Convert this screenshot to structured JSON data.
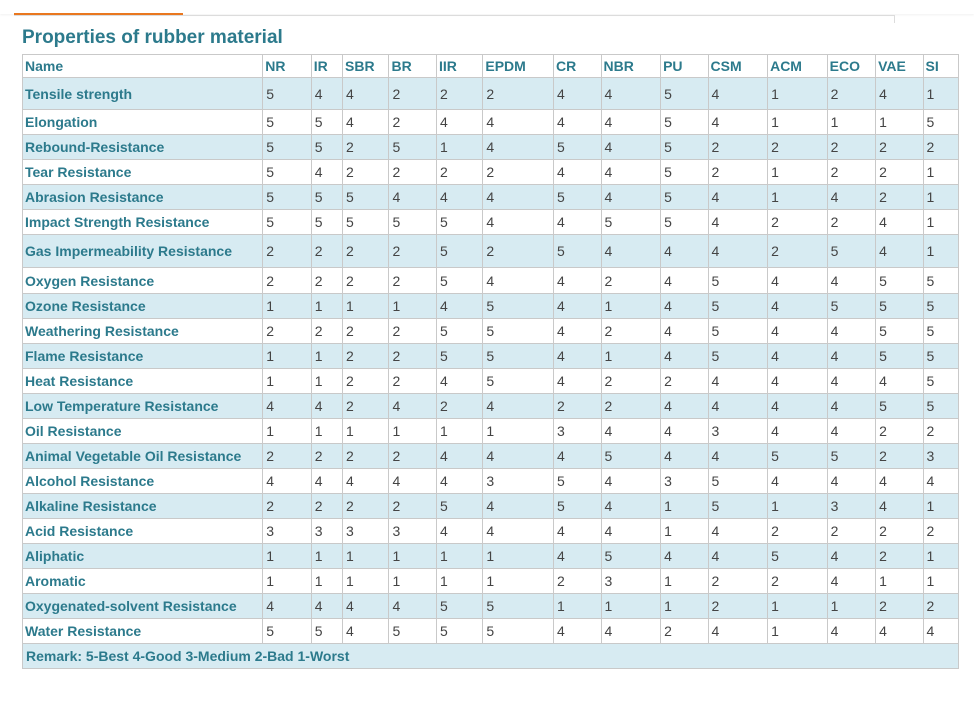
{
  "title": "Properties of rubber material",
  "header": [
    "Name",
    "NR",
    "IR",
    "SBR",
    "BR",
    "IIR",
    "EPDM",
    "CR",
    "NBR",
    "PU",
    "CSM",
    "ACM",
    "ECO",
    "VAE",
    "SI"
  ],
  "rows": [
    {
      "name": "Tensile strength",
      "values": [
        "5",
        "4",
        "4",
        "2",
        "2",
        "2",
        "4",
        "4",
        "5",
        "4",
        "1",
        "2",
        "4",
        "1"
      ]
    },
    {
      "name": "Elongation",
      "values": [
        "5",
        "5",
        "4",
        "2",
        "4",
        "4",
        "4",
        "4",
        "5",
        "4",
        "1",
        "1",
        "1",
        "5"
      ]
    },
    {
      "name": "Rebound-Resistance",
      "values": [
        "5",
        "5",
        "2",
        "5",
        "1",
        "4",
        "5",
        "4",
        "5",
        "2",
        "2",
        "2",
        "2",
        "2"
      ]
    },
    {
      "name": "Tear Resistance",
      "values": [
        "5",
        "4",
        "2",
        "2",
        "2",
        "2",
        "4",
        "4",
        "5",
        "2",
        "1",
        "2",
        "2",
        "1"
      ]
    },
    {
      "name": "Abrasion Resistance",
      "values": [
        "5",
        "5",
        "5",
        "4",
        "4",
        "4",
        "5",
        "4",
        "5",
        "4",
        "1",
        "4",
        "2",
        "1"
      ]
    },
    {
      "name": "Impact Strength Resistance",
      "values": [
        "5",
        "5",
        "5",
        "5",
        "5",
        "4",
        "4",
        "5",
        "5",
        "4",
        "2",
        "2",
        "4",
        "1"
      ]
    },
    {
      "name": "Gas Impermeability Resistance",
      "values": [
        "2",
        "2",
        "2",
        "2",
        "5",
        "2",
        "5",
        "4",
        "4",
        "4",
        "2",
        "5",
        "4",
        "1"
      ]
    },
    {
      "name": "Oxygen Resistance",
      "values": [
        "2",
        "2",
        "2",
        "2",
        "5",
        "4",
        "4",
        "2",
        "4",
        "5",
        "4",
        "4",
        "5",
        "5"
      ]
    },
    {
      "name": "Ozone Resistance",
      "values": [
        "1",
        "1",
        "1",
        "1",
        "4",
        "5",
        "4",
        "1",
        "4",
        "5",
        "4",
        "5",
        "5",
        "5"
      ]
    },
    {
      "name": "Weathering Resistance",
      "values": [
        "2",
        "2",
        "2",
        "2",
        "5",
        "5",
        "4",
        "2",
        "4",
        "5",
        "4",
        "4",
        "5",
        "5"
      ]
    },
    {
      "name": "Flame Resistance",
      "values": [
        "1",
        "1",
        "2",
        "2",
        "5",
        "5",
        "4",
        "1",
        "4",
        "5",
        "4",
        "4",
        "5",
        "5"
      ]
    },
    {
      "name": "Heat Resistance",
      "values": [
        "1",
        "1",
        "2",
        "2",
        "4",
        "5",
        "4",
        "2",
        "2",
        "4",
        "4",
        "4",
        "4",
        "5"
      ]
    },
    {
      "name": "Low Temperature Resistance",
      "values": [
        "4",
        "4",
        "2",
        "4",
        "2",
        "4",
        "2",
        "2",
        "4",
        "4",
        "4",
        "4",
        "5",
        "5"
      ]
    },
    {
      "name": "Oil Resistance",
      "values": [
        "1",
        "1",
        "1",
        "1",
        "1",
        "1",
        "3",
        "4",
        "4",
        "3",
        "4",
        "4",
        "2",
        "2"
      ]
    },
    {
      "name": "Animal  Vegetable Oil Resistance",
      "values": [
        "2",
        "2",
        "2",
        "2",
        "4",
        "4",
        "4",
        "5",
        "4",
        "4",
        "5",
        "5",
        "2",
        "3"
      ]
    },
    {
      "name": "Alcohol Resistance",
      "values": [
        "4",
        "4",
        "4",
        "4",
        "4",
        "3",
        "5",
        "4",
        "3",
        "5",
        "4",
        "4",
        "4",
        "4"
      ]
    },
    {
      "name": "Alkaline Resistance",
      "values": [
        "2",
        "2",
        "2",
        "2",
        "5",
        "4",
        "5",
        "4",
        "1",
        "5",
        "1",
        "3",
        "4",
        "1"
      ]
    },
    {
      "name": "Acid Resistance",
      "values": [
        "3",
        "3",
        "3",
        "3",
        "4",
        "4",
        "4",
        "4",
        "1",
        "4",
        "2",
        "2",
        "2",
        "2"
      ]
    },
    {
      "name": "Aliphatic",
      "values": [
        "1",
        "1",
        "1",
        "1",
        "1",
        "1",
        "4",
        "5",
        "4",
        "4",
        "5",
        "4",
        "2",
        "1"
      ]
    },
    {
      "name": "Aromatic",
      "values": [
        "1",
        "1",
        "1",
        "1",
        "1",
        "1",
        "2",
        "3",
        "1",
        "2",
        "2",
        "4",
        "1",
        "1"
      ]
    },
    {
      "name": "Oxygenated-solvent Resistance",
      "values": [
        "4",
        "4",
        "4",
        "4",
        "5",
        "5",
        "1",
        "1",
        "1",
        "2",
        "1",
        "1",
        "2",
        "2"
      ]
    },
    {
      "name": "Water Resistance",
      "values": [
        "5",
        "5",
        "4",
        "5",
        "5",
        "5",
        "4",
        "4",
        "2",
        "4",
        "1",
        "4",
        "4",
        "4"
      ]
    }
  ],
  "remark": "Remark:  5-Best   4-Good   3-Medium   2-Bad   1-Worst",
  "colors": {
    "accent": "#e9771f",
    "text": "#2c7a8c",
    "shade": "#d7ebf2",
    "grid": "#c9c9c9"
  }
}
